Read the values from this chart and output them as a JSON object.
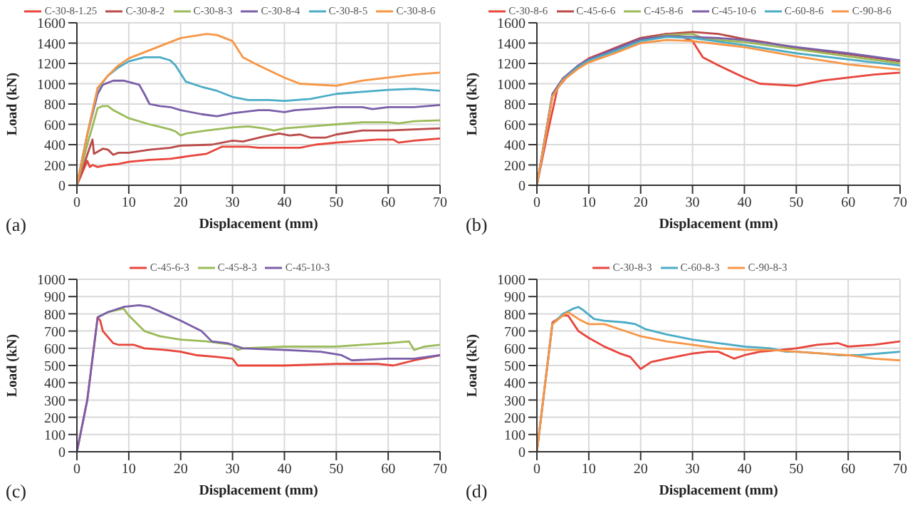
{
  "chart_data": [
    {
      "type": "line",
      "xlabel": "Displacement (mm)",
      "ylabel": "Load (kN)",
      "annotations": [
        "(a)"
      ],
      "xlim": [
        0,
        70
      ],
      "xticks": [
        0,
        10,
        20,
        30,
        40,
        50,
        60,
        70
      ],
      "ylim": [
        0,
        1600
      ],
      "yticks": [
        0,
        200,
        400,
        600,
        800,
        1000,
        1200,
        1400,
        1600
      ],
      "grid": true,
      "legend": "top",
      "marker": "none",
      "line_style": "solid",
      "series": [
        {
          "name": "C-30-8-1.25",
          "color": "#e8453c",
          "x": [
            0,
            1,
            2,
            2.5,
            3,
            4,
            6,
            8,
            10,
            14,
            18,
            22,
            25,
            28,
            30,
            33,
            35,
            40,
            43,
            46,
            50,
            55,
            58,
            61,
            62,
            65,
            70
          ],
          "values": [
            0,
            120,
            240,
            180,
            200,
            180,
            200,
            210,
            230,
            250,
            260,
            290,
            310,
            380,
            380,
            380,
            370,
            370,
            370,
            400,
            420,
            440,
            450,
            450,
            420,
            440,
            460
          ]
        },
        {
          "name": "C-30-8-2",
          "color": "#b94a48",
          "x": [
            0,
            2,
            3,
            3.3,
            5,
            6,
            7,
            8,
            10,
            14,
            18,
            20,
            26,
            30,
            32,
            36,
            39,
            41,
            43,
            45,
            48,
            50,
            55,
            60,
            65,
            70
          ],
          "values": [
            0,
            300,
            450,
            310,
            360,
            350,
            300,
            320,
            320,
            350,
            370,
            390,
            400,
            440,
            430,
            480,
            510,
            490,
            500,
            470,
            470,
            500,
            540,
            540,
            550,
            560
          ]
        },
        {
          "name": "C-30-8-3",
          "color": "#9bbb59",
          "x": [
            0,
            2,
            4,
            5,
            6,
            7,
            10,
            14,
            18,
            19,
            20,
            21,
            25,
            30,
            33,
            36,
            38,
            40,
            45,
            50,
            55,
            60,
            62,
            65,
            70
          ],
          "values": [
            0,
            400,
            760,
            780,
            780,
            740,
            660,
            600,
            550,
            530,
            490,
            510,
            540,
            570,
            580,
            560,
            540,
            560,
            580,
            600,
            620,
            620,
            610,
            630,
            640
          ]
        },
        {
          "name": "C-30-8-4",
          "color": "#7a5fa8",
          "x": [
            0,
            2,
            4,
            5,
            7,
            9,
            12,
            13,
            14,
            16,
            18,
            20,
            24,
            27,
            30,
            35,
            37,
            40,
            42,
            48,
            50,
            55,
            57,
            60,
            65,
            70
          ],
          "values": [
            0,
            500,
            900,
            990,
            1030,
            1030,
            990,
            900,
            800,
            780,
            770,
            740,
            700,
            680,
            710,
            740,
            740,
            720,
            740,
            760,
            770,
            770,
            750,
            770,
            770,
            790
          ]
        },
        {
          "name": "C-30-8-5",
          "color": "#4bacc6",
          "x": [
            0,
            2,
            4,
            6,
            8,
            10,
            13,
            16,
            18,
            19,
            21,
            24,
            27,
            30,
            33,
            37,
            40,
            45,
            50,
            55,
            60,
            65,
            70
          ],
          "values": [
            0,
            500,
            950,
            1080,
            1160,
            1220,
            1260,
            1260,
            1230,
            1180,
            1020,
            970,
            930,
            870,
            840,
            840,
            830,
            850,
            900,
            920,
            940,
            950,
            930
          ]
        },
        {
          "name": "C-30-8-6",
          "color": "#f79646",
          "x": [
            0,
            2,
            4,
            6,
            8,
            10,
            15,
            20,
            25,
            27,
            30,
            32,
            35,
            40,
            43,
            50,
            55,
            60,
            65,
            70
          ],
          "values": [
            0,
            500,
            960,
            1080,
            1180,
            1250,
            1350,
            1450,
            1490,
            1480,
            1420,
            1260,
            1180,
            1060,
            1000,
            980,
            1030,
            1060,
            1090,
            1110
          ]
        }
      ]
    },
    {
      "type": "line",
      "xlabel": "Displacement (mm)",
      "ylabel": "Load (kN)",
      "annotations": [
        "(b)"
      ],
      "xlim": [
        0,
        70
      ],
      "xticks": [
        0,
        10,
        20,
        30,
        40,
        50,
        60,
        70
      ],
      "ylim": [
        0,
        1600
      ],
      "yticks": [
        0,
        200,
        400,
        600,
        800,
        1000,
        1200,
        1400,
        1600
      ],
      "grid": true,
      "legend": "top",
      "marker": "none",
      "line_style": "solid",
      "series": [
        {
          "name": "C-30-8-6",
          "color": "#e8453c",
          "x": [
            0,
            2,
            4,
            6,
            8,
            10,
            15,
            20,
            25,
            27,
            30,
            32,
            35,
            40,
            43,
            50,
            55,
            60,
            65,
            70
          ],
          "values": [
            0,
            500,
            960,
            1080,
            1180,
            1250,
            1350,
            1450,
            1490,
            1480,
            1420,
            1260,
            1180,
            1060,
            1000,
            980,
            1030,
            1060,
            1090,
            1110
          ]
        },
        {
          "name": "C-45-6-6",
          "color": "#b94a48",
          "x": [
            0,
            3,
            5,
            8,
            10,
            15,
            20,
            25,
            30,
            35,
            40,
            45,
            50,
            60,
            70
          ],
          "values": [
            0,
            900,
            1050,
            1180,
            1240,
            1350,
            1450,
            1490,
            1510,
            1490,
            1440,
            1400,
            1350,
            1290,
            1220
          ]
        },
        {
          "name": "C-45-8-6",
          "color": "#9bbb59",
          "x": [
            0,
            3,
            5,
            8,
            10,
            15,
            20,
            25,
            30,
            32,
            35,
            40,
            50,
            60,
            70
          ],
          "values": [
            0,
            880,
            1040,
            1170,
            1230,
            1330,
            1430,
            1480,
            1490,
            1450,
            1430,
            1410,
            1340,
            1270,
            1200
          ]
        },
        {
          "name": "C-45-10-6",
          "color": "#7a5fa8",
          "x": [
            0,
            3,
            5,
            8,
            10,
            15,
            20,
            25,
            30,
            35,
            40,
            50,
            60,
            70
          ],
          "values": [
            0,
            890,
            1050,
            1180,
            1240,
            1340,
            1440,
            1470,
            1460,
            1450,
            1430,
            1360,
            1300,
            1230
          ]
        },
        {
          "name": "C-60-8-6",
          "color": "#4bacc6",
          "x": [
            0,
            3,
            5,
            8,
            10,
            15,
            20,
            25,
            30,
            40,
            50,
            60,
            70
          ],
          "values": [
            0,
            880,
            1040,
            1170,
            1230,
            1320,
            1420,
            1460,
            1450,
            1380,
            1300,
            1240,
            1180
          ]
        },
        {
          "name": "C-90-8-6",
          "color": "#f79646",
          "x": [
            0,
            3,
            5,
            8,
            10,
            15,
            20,
            25,
            30,
            40,
            50,
            60,
            70
          ],
          "values": [
            0,
            870,
            1030,
            1150,
            1210,
            1300,
            1400,
            1430,
            1420,
            1360,
            1270,
            1190,
            1140
          ]
        }
      ]
    },
    {
      "type": "line",
      "xlabel": "Displacement (mm)",
      "ylabel": "Load (kN)",
      "annotations": [
        "(c)"
      ],
      "xlim": [
        0,
        70
      ],
      "xticks": [
        0,
        10,
        20,
        30,
        40,
        50,
        60,
        70
      ],
      "ylim": [
        0,
        1000
      ],
      "yticks": [
        0,
        100,
        200,
        300,
        400,
        500,
        600,
        700,
        800,
        900,
        1000
      ],
      "grid": true,
      "legend": "top",
      "marker": "none",
      "line_style": "solid",
      "series": [
        {
          "name": "C-45-6-3",
          "color": "#e8453c",
          "x": [
            0,
            2,
            4,
            4.5,
            5,
            7,
            8,
            11,
            13,
            17,
            20,
            23,
            27,
            30,
            31,
            40,
            50,
            58,
            61,
            65,
            70
          ],
          "values": [
            0,
            300,
            780,
            760,
            700,
            630,
            620,
            620,
            600,
            590,
            580,
            560,
            550,
            540,
            500,
            500,
            510,
            510,
            500,
            530,
            560
          ]
        },
        {
          "name": "C-45-8-3",
          "color": "#9bbb59",
          "x": [
            4,
            6,
            9,
            10,
            13,
            16,
            20,
            25,
            30,
            31,
            32,
            40,
            50,
            55,
            60,
            64,
            65,
            67,
            70
          ],
          "values": [
            780,
            810,
            830,
            790,
            700,
            670,
            650,
            640,
            620,
            590,
            600,
            610,
            610,
            620,
            630,
            640,
            590,
            610,
            620
          ]
        },
        {
          "name": "C-45-10-3",
          "color": "#7a5fa8",
          "x": [
            0,
            2,
            4,
            6,
            9,
            12,
            14,
            17,
            20,
            24,
            26,
            29,
            32,
            40,
            47,
            51,
            53,
            60,
            65,
            70
          ],
          "values": [
            0,
            300,
            780,
            810,
            840,
            850,
            840,
            800,
            760,
            700,
            640,
            630,
            600,
            590,
            580,
            560,
            530,
            540,
            540,
            560
          ]
        }
      ]
    },
    {
      "type": "line",
      "xlabel": "Displacement (mm)",
      "ylabel": "Load (kN)",
      "annotations": [
        "(d)"
      ],
      "xlim": [
        0,
        70
      ],
      "xticks": [
        0,
        10,
        20,
        30,
        40,
        50,
        60,
        70
      ],
      "ylim": [
        0,
        1000
      ],
      "yticks": [
        0,
        100,
        200,
        300,
        400,
        500,
        600,
        700,
        800,
        900,
        1000
      ],
      "grid": true,
      "legend": "top",
      "marker": "none",
      "line_style": "solid",
      "series": [
        {
          "name": "C-30-8-3",
          "color": "#e8453c",
          "x": [
            0,
            3,
            5,
            6,
            8,
            10,
            13,
            16,
            18,
            20,
            22,
            25,
            30,
            33,
            35,
            38,
            40,
            43,
            47,
            50,
            54,
            58,
            60,
            65,
            70
          ],
          "values": [
            0,
            750,
            790,
            790,
            700,
            660,
            610,
            570,
            550,
            480,
            520,
            540,
            570,
            580,
            580,
            540,
            560,
            580,
            590,
            600,
            620,
            630,
            610,
            620,
            640
          ]
        },
        {
          "name": "C-60-8-3",
          "color": "#4bacc6",
          "x": [
            0,
            3,
            5,
            7,
            8,
            9,
            11,
            13,
            17,
            19,
            21,
            25,
            30,
            35,
            40,
            45,
            48,
            50,
            55,
            58,
            62,
            70
          ],
          "values": [
            0,
            740,
            800,
            830,
            840,
            820,
            770,
            760,
            750,
            740,
            710,
            680,
            650,
            630,
            610,
            600,
            580,
            580,
            570,
            560,
            560,
            580
          ]
        },
        {
          "name": "C-90-8-3",
          "color": "#f79646",
          "x": [
            0,
            3,
            5,
            6,
            8,
            10,
            13,
            15,
            18,
            20,
            25,
            30,
            35,
            40,
            45,
            50,
            55,
            60,
            65,
            70
          ],
          "values": [
            0,
            740,
            790,
            810,
            770,
            740,
            740,
            720,
            690,
            670,
            640,
            620,
            600,
            590,
            590,
            580,
            570,
            560,
            540,
            530
          ]
        }
      ]
    }
  ]
}
